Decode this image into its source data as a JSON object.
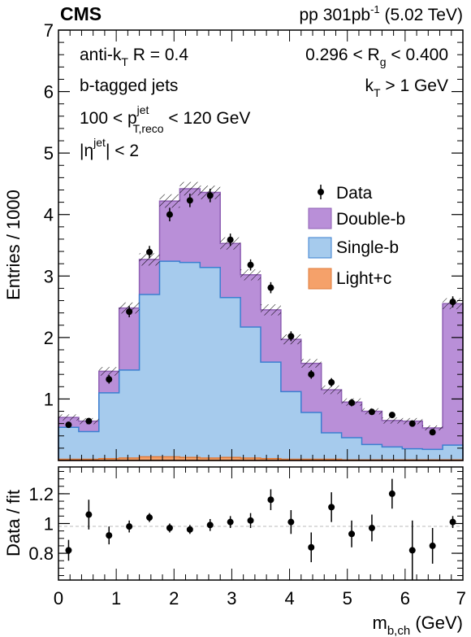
{
  "header": {
    "experiment": "CMS",
    "lumi_prefix": "pp 301pb",
    "lumi_exp": "-1",
    "lumi_suffix": " (5.02 TeV)"
  },
  "labels": {
    "algo_main": "anti-k",
    "algo_sub": "T",
    "algo_rest": " R = 0.4",
    "rg_left": "0.296 < R",
    "rg_sub": "g",
    "rg_right": " < 0.400",
    "btag": "b-tagged jets",
    "kt_main": "k",
    "kt_sub": "T",
    "kt_rest": " > 1 GeV",
    "pt_left": "100 < p",
    "pt_sup": "jet",
    "pt_sub": "T,reco",
    "pt_right": " < 120 GeV",
    "eta_left": "|η",
    "eta_sup": "jet",
    "eta_right": "| < 2"
  },
  "chart_data": [
    {
      "type": "bar",
      "stacked": true,
      "ylabel": "Entries / 1000",
      "ylim": [
        0,
        7
      ],
      "yticks": [
        "1",
        "2",
        "3",
        "4",
        "5",
        "6",
        "7"
      ],
      "xlim": [
        0,
        7
      ],
      "bin_edges": [
        0,
        0.35,
        0.7,
        1.05,
        1.4,
        1.75,
        2.1,
        2.45,
        2.8,
        3.15,
        3.5,
        3.85,
        4.2,
        4.55,
        4.9,
        5.25,
        5.6,
        5.95,
        6.3,
        6.65,
        7.0
      ],
      "series": [
        {
          "name": "Light+c",
          "color": "#f5a16a",
          "values": [
            0.02,
            0.02,
            0.03,
            0.04,
            0.06,
            0.06,
            0.05,
            0.04,
            0.05,
            0.04,
            0.03,
            0.02,
            0.02,
            0.02,
            0.01,
            0.01,
            0.01,
            0.01,
            0.01,
            0.01
          ]
        },
        {
          "name": "Single-b",
          "color": "#a6cbed",
          "values": [
            0.52,
            0.45,
            1.07,
            1.43,
            2.64,
            3.18,
            3.17,
            3.1,
            2.6,
            2.13,
            1.57,
            1.1,
            0.76,
            0.43,
            0.36,
            0.25,
            0.21,
            0.18,
            0.17,
            0.24
          ]
        },
        {
          "name": "Double-b",
          "color": "#b98fd8",
          "values": [
            0.16,
            0.17,
            0.35,
            1.01,
            0.57,
            0.98,
            1.2,
            1.22,
            0.88,
            0.85,
            0.85,
            0.85,
            0.8,
            0.7,
            0.58,
            0.54,
            0.43,
            0.45,
            0.35,
            2.3
          ]
        }
      ],
      "data": {
        "name": "Data",
        "values": [
          0.58,
          0.64,
          1.32,
          2.42,
          3.39,
          4.0,
          4.23,
          4.31,
          3.59,
          3.18,
          2.81,
          2.02,
          1.4,
          1.27,
          0.94,
          0.79,
          0.74,
          0.6,
          0.46,
          2.58
        ],
        "errors": [
          0.05,
          0.05,
          0.07,
          0.09,
          0.1,
          0.11,
          0.11,
          0.11,
          0.1,
          0.09,
          0.09,
          0.08,
          0.07,
          0.07,
          0.06,
          0.05,
          0.05,
          0.05,
          0.04,
          0.09
        ]
      }
    },
    {
      "type": "scatter",
      "ylabel": "Data / fit",
      "xlabel_main": "m",
      "xlabel_sub": "b,ch",
      "xlabel_rest": " (GeV)",
      "ylim": [
        0.62,
        1.38
      ],
      "yticks": [
        "0.8",
        "1",
        "1.2"
      ],
      "xticks": [
        "0",
        "1",
        "2",
        "3",
        "4",
        "5",
        "6",
        "7"
      ],
      "x": [
        0.175,
        0.525,
        0.875,
        1.225,
        1.575,
        1.925,
        2.275,
        2.625,
        2.975,
        3.325,
        3.675,
        4.025,
        4.375,
        4.725,
        5.075,
        5.425,
        5.775,
        6.125,
        6.475,
        6.825
      ],
      "values": [
        0.82,
        1.06,
        0.92,
        0.98,
        1.04,
        0.97,
        0.96,
        0.99,
        1.01,
        1.02,
        1.16,
        1.01,
        0.84,
        1.11,
        0.93,
        0.97,
        1.2,
        0.82,
        0.85,
        1.01
      ],
      "errors": [
        0.07,
        0.1,
        0.06,
        0.04,
        0.03,
        0.03,
        0.03,
        0.04,
        0.04,
        0.05,
        0.07,
        0.08,
        0.1,
        0.1,
        0.09,
        0.09,
        0.1,
        0.2,
        0.12,
        0.04
      ]
    }
  ]
}
